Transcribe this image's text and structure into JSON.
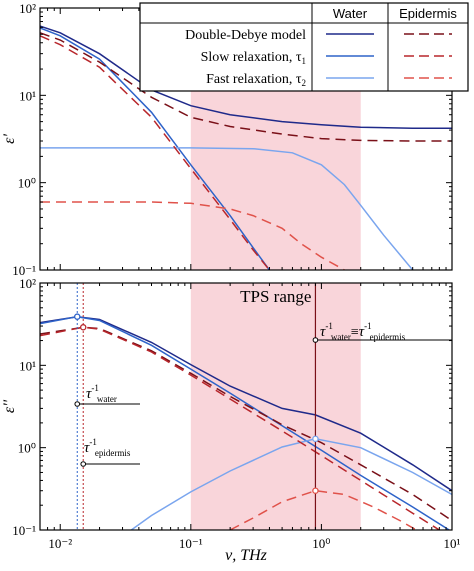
{
  "chart_data": [
    {
      "type": "line",
      "ylabel": "ε'",
      "xscale": "log",
      "yscale": "log",
      "xlim": [
        0.007,
        10
      ],
      "ylim": [
        0.1,
        100
      ],
      "x_ticks": [
        "10⁻²",
        "10⁻¹",
        "10⁰",
        "10¹"
      ],
      "y_ticks": [
        "10⁻¹",
        "10⁰",
        "10¹",
        "10²"
      ],
      "shaded_range": [
        0.1,
        2.0
      ],
      "legend": {
        "placement": "top-right",
        "columns": [
          "Water",
          "Epidermis"
        ],
        "rows": [
          "Double-Debye model",
          "Slow relaxation, τ",
          "Fast relaxation, τ"
        ],
        "row_subscripts": [
          "",
          "1",
          "2"
        ]
      },
      "series": [
        {
          "name": "Double-Debye model",
          "group": "Water",
          "color": "#1f2a8a",
          "dash": "solid",
          "x": [
            0.007,
            0.01,
            0.02,
            0.05,
            0.1,
            0.2,
            0.5,
            1,
            2,
            5,
            10
          ],
          "y": [
            62,
            52,
            30,
            11.5,
            7.6,
            6.0,
            5.0,
            4.6,
            4.3,
            4.2,
            4.2
          ]
        },
        {
          "name": "Slow relaxation, τ1",
          "group": "Water",
          "color": "#2e63c9",
          "dash": "solid",
          "x": [
            0.007,
            0.01,
            0.02,
            0.05,
            0.1,
            0.2,
            0.3,
            0.4
          ],
          "y": [
            59,
            48,
            26,
            6.4,
            1.6,
            0.42,
            0.18,
            0.1
          ]
        },
        {
          "name": "Fast relaxation, τ2",
          "group": "Water",
          "color": "#7aa5ee",
          "dash": "solid",
          "x": [
            0.007,
            0.1,
            0.3,
            0.6,
            1,
            1.5,
            2,
            3,
            5
          ],
          "y": [
            2.5,
            2.5,
            2.45,
            2.2,
            1.6,
            0.95,
            0.55,
            0.25,
            0.1
          ]
        },
        {
          "name": "Double-Debye model",
          "group": "Epidermis",
          "color": "#7a1018",
          "dash": "dashed",
          "x": [
            0.007,
            0.01,
            0.02,
            0.05,
            0.1,
            0.2,
            0.5,
            1,
            2,
            5,
            10
          ],
          "y": [
            52,
            43,
            24,
            9.5,
            5.6,
            4.4,
            3.6,
            3.2,
            3.05,
            3.0,
            3.0
          ]
        },
        {
          "name": "Slow relaxation, τ1",
          "group": "Epidermis",
          "color": "#b8262b",
          "dash": "dashed",
          "x": [
            0.007,
            0.01,
            0.02,
            0.05,
            0.1,
            0.2,
            0.3,
            0.4
          ],
          "y": [
            48,
            38,
            21,
            5.6,
            1.45,
            0.38,
            0.17,
            0.1
          ]
        },
        {
          "name": "Fast relaxation, τ2",
          "group": "Epidermis",
          "color": "#e0524a",
          "dash": "dashed",
          "x": [
            0.007,
            0.05,
            0.1,
            0.2,
            0.3,
            0.5,
            0.7,
            1,
            1.5,
            2
          ],
          "y": [
            0.6,
            0.6,
            0.58,
            0.5,
            0.42,
            0.3,
            0.2,
            0.14,
            0.1,
            0.08
          ]
        }
      ]
    },
    {
      "type": "line",
      "ylabel": "ε''",
      "xlabel": "ν, THz",
      "xscale": "log",
      "yscale": "log",
      "xlim": [
        0.007,
        10
      ],
      "ylim": [
        0.1,
        100
      ],
      "x_ticks": [
        "10⁻²",
        "10⁻¹",
        "10⁰",
        "10¹"
      ],
      "y_ticks": [
        "10⁻¹",
        "10⁰",
        "10¹",
        "10²"
      ],
      "shaded_range": [
        0.1,
        2.0
      ],
      "shaded_label": "TPS range",
      "annotations": [
        {
          "tau": "τ",
          "sup": "-1",
          "sub": "water",
          "vline_x": 0.0135,
          "color": "#2e63c9"
        },
        {
          "tau": "τ",
          "sup": "-1",
          "sub": "epidermis",
          "vline_x": 0.015,
          "color": "#b8262b"
        },
        {
          "tau": "τ",
          "sup": "-1",
          "sub": "water",
          "eq": "≡",
          "tau2": "τ",
          "sup2": "-1",
          "sub2": "epidermis",
          "vline_x": 0.9,
          "color": "#7a1018"
        }
      ],
      "markers": [
        {
          "x": 0.0135,
          "y": 39,
          "color": "#2e63c9"
        },
        {
          "x": 0.015,
          "y": 29,
          "color": "#b8262b"
        },
        {
          "x": 0.9,
          "y": 1.28,
          "color": "#7aa5ee"
        },
        {
          "x": 0.9,
          "y": 0.3,
          "color": "#e0524a"
        }
      ],
      "series": [
        {
          "name": "Double-Debye model",
          "group": "Water",
          "color": "#1f2a8a",
          "dash": "solid",
          "x": [
            0.007,
            0.0135,
            0.02,
            0.05,
            0.1,
            0.2,
            0.5,
            0.9,
            2,
            5,
            10
          ],
          "y": [
            33,
            39,
            36,
            19,
            10.2,
            5.6,
            3.0,
            2.5,
            1.5,
            0.62,
            0.3
          ]
        },
        {
          "name": "Slow relaxation, τ1",
          "group": "Water",
          "color": "#2e63c9",
          "dash": "solid",
          "x": [
            0.007,
            0.0135,
            0.02,
            0.05,
            0.1,
            0.2,
            0.5,
            1,
            2,
            5,
            10
          ],
          "y": [
            32,
            39,
            35,
            17.5,
            9.0,
            4.6,
            1.85,
            0.93,
            0.46,
            0.19,
            0.095
          ]
        },
        {
          "name": "Fast relaxation, τ2",
          "group": "Water",
          "color": "#7aa5ee",
          "dash": "solid",
          "x": [
            0.035,
            0.05,
            0.1,
            0.2,
            0.5,
            0.9,
            2,
            5,
            10
          ],
          "y": [
            0.1,
            0.15,
            0.29,
            0.52,
            1.02,
            1.28,
            1.0,
            0.5,
            0.27
          ]
        },
        {
          "name": "Double-Debye model",
          "group": "Epidermis",
          "color": "#7a1018",
          "dash": "dashed",
          "x": [
            0.007,
            0.015,
            0.02,
            0.05,
            0.1,
            0.2,
            0.5,
            1,
            2,
            5,
            10
          ],
          "y": [
            24,
            29,
            28,
            15,
            8.0,
            4.2,
            1.9,
            1.15,
            0.62,
            0.27,
            0.13
          ]
        },
        {
          "name": "Slow relaxation, τ1",
          "group": "Epidermis",
          "color": "#b8262b",
          "dash": "dashed",
          "x": [
            0.007,
            0.015,
            0.02,
            0.05,
            0.1,
            0.2,
            0.5,
            1,
            2,
            5,
            10
          ],
          "y": [
            23,
            29,
            27.5,
            14.5,
            7.6,
            3.9,
            1.6,
            0.8,
            0.4,
            0.16,
            0.08
          ]
        },
        {
          "name": "Fast relaxation, τ2",
          "group": "Epidermis",
          "color": "#e0524a",
          "dash": "dashed",
          "x": [
            0.2,
            0.3,
            0.5,
            0.9,
            1.5,
            2.5,
            4,
            6
          ],
          "y": [
            0.1,
            0.14,
            0.22,
            0.3,
            0.27,
            0.19,
            0.13,
            0.09
          ]
        }
      ]
    }
  ]
}
